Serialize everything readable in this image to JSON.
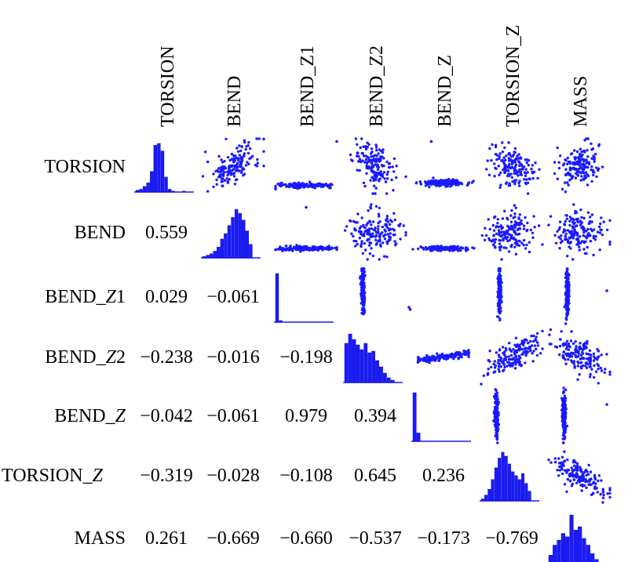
{
  "chart_data": {
    "type": "scatter-matrix",
    "variables": [
      "TORSION",
      "BEND",
      "BEND_Z1",
      "BEND_Z2",
      "BEND_Z",
      "TORSION_Z",
      "MASS"
    ],
    "row_labels": [
      {
        "base": "TORSION",
        "italic": "",
        "tail": ""
      },
      {
        "base": "BEND",
        "italic": "",
        "tail": ""
      },
      {
        "base": "BEND_",
        "italic": "Z",
        "tail": "1"
      },
      {
        "base": "BEND_",
        "italic": "Z",
        "tail": "2"
      },
      {
        "base": "BEND_",
        "italic": "Z",
        "tail": ""
      },
      {
        "base": "TORSION_",
        "italic": "Z",
        "tail": ""
      },
      {
        "base": "MASS",
        "italic": "",
        "tail": ""
      }
    ],
    "column_labels": [
      "TORSION",
      "BEND",
      "BEND_Z1",
      "BEND_Z2",
      "BEND_Z",
      "TORSION_Z",
      "MASS"
    ],
    "correlations": [
      {
        "row": 1,
        "col": 0,
        "value": "0.559"
      },
      {
        "row": 2,
        "col": 0,
        "value": "0.029"
      },
      {
        "row": 2,
        "col": 1,
        "value": "−0.061"
      },
      {
        "row": 3,
        "col": 0,
        "value": "−0.238"
      },
      {
        "row": 3,
        "col": 1,
        "value": "−0.016"
      },
      {
        "row": 3,
        "col": 2,
        "value": "−0.198"
      },
      {
        "row": 4,
        "col": 0,
        "value": "−0.042"
      },
      {
        "row": 4,
        "col": 1,
        "value": "−0.061"
      },
      {
        "row": 4,
        "col": 2,
        "value": "0.979"
      },
      {
        "row": 4,
        "col": 3,
        "value": "0.394"
      },
      {
        "row": 5,
        "col": 0,
        "value": "−0.319"
      },
      {
        "row": 5,
        "col": 1,
        "value": "−0.028"
      },
      {
        "row": 5,
        "col": 2,
        "value": "−0.108"
      },
      {
        "row": 5,
        "col": 3,
        "value": "0.645"
      },
      {
        "row": 5,
        "col": 4,
        "value": "0.236"
      },
      {
        "row": 6,
        "col": 0,
        "value": "0.261"
      },
      {
        "row": 6,
        "col": 1,
        "value": "−0.669"
      },
      {
        "row": 6,
        "col": 2,
        "value": "−0.660"
      },
      {
        "row": 6,
        "col": 3,
        "value": "−0.537"
      },
      {
        "row": 6,
        "col": 4,
        "value": "−0.173"
      },
      {
        "row": 6,
        "col": 5,
        "value": "−0.769"
      }
    ],
    "histograms": [
      {
        "variable": "TORSION",
        "counts": [
          2,
          3,
          6,
          10,
          22,
          50,
          52,
          44,
          16,
          3,
          1,
          0,
          0,
          1
        ]
      },
      {
        "variable": "BEND",
        "counts": [
          1,
          2,
          3,
          5,
          8,
          14,
          18,
          24,
          30,
          36,
          33,
          28,
          20,
          10
        ]
      },
      {
        "variable": "BEND_Z1",
        "counts": [
          60,
          2,
          0,
          0,
          0,
          0,
          0,
          0,
          0,
          0,
          0,
          0,
          0,
          0
        ]
      },
      {
        "variable": "BEND_Z2",
        "counts": [
          50,
          62,
          55,
          48,
          42,
          50,
          38,
          40,
          28,
          20,
          12,
          6,
          3
        ]
      },
      {
        "variable": "BEND_Z",
        "counts": [
          70,
          12,
          0,
          0,
          0,
          0,
          0,
          0,
          0,
          0,
          0,
          0,
          0
        ]
      },
      {
        "variable": "TORSION_Z",
        "counts": [
          2,
          6,
          12,
          22,
          34,
          44,
          50,
          46,
          38,
          30,
          26,
          22,
          28,
          18,
          10
        ]
      },
      {
        "variable": "MASS",
        "counts": [
          10,
          22,
          28,
          36,
          32,
          58,
          40,
          44,
          30,
          22,
          12,
          5
        ]
      }
    ],
    "point_color": "#1a1aff",
    "grid": false
  }
}
